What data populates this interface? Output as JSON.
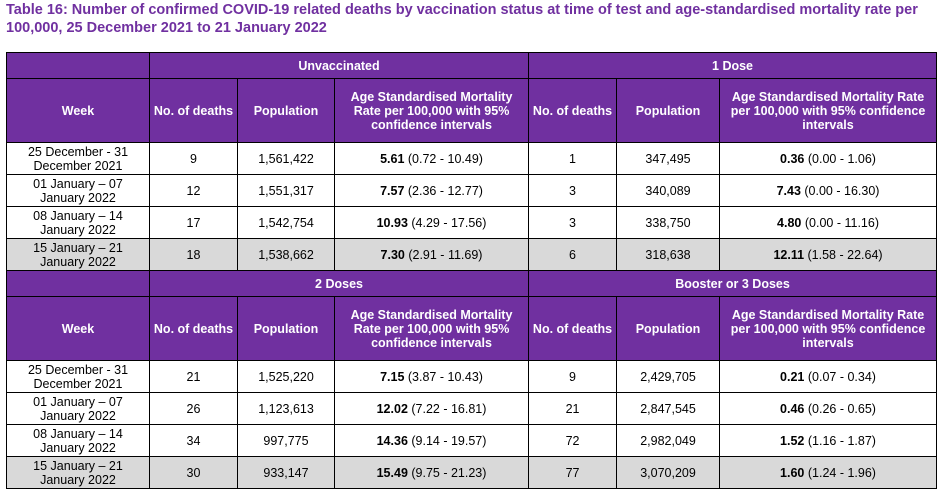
{
  "title": "Table 16: Number of confirmed COVID-19 related deaths by vaccination status at time of test and age-standardised mortality rate per 100,000, 25 December 2021 to 21 January 2022",
  "headers": {
    "week": "Week",
    "deaths": "No. of deaths",
    "population": "Population",
    "rate_left": "Age Standardised Mortality Rate per 100,000 with 95% confidence intervals",
    "rate_right": "Age Standardised Mortality Rate per 100,000 with 95% confidence intervals"
  },
  "sections": [
    {
      "groups": [
        "Unvaccinated",
        "1 Dose"
      ],
      "rows": [
        {
          "week": "25 December - 31 December 2021",
          "d1": "9",
          "p1": "1,561,422",
          "r1": "5.61",
          "ci1": " (0.72 - 10.49)",
          "d2": "1",
          "p2": "347,495",
          "r2": "0.36",
          "ci2": " (0.00 - 1.06)"
        },
        {
          "week": "01 January – 07 January 2022",
          "d1": "12",
          "p1": "1,551,317",
          "r1": "7.57",
          "ci1": " (2.36 - 12.77)",
          "d2": "3",
          "p2": "340,089",
          "r2": "7.43",
          "ci2": " (0.00 - 16.30)"
        },
        {
          "week": "08 January – 14 January 2022",
          "d1": "17",
          "p1": "1,542,754",
          "r1": "10.93",
          "ci1": " (4.29 - 17.56)",
          "d2": "3",
          "p2": "338,750",
          "r2": "4.80",
          "ci2": " (0.00 - 11.16)"
        },
        {
          "week": "15 January – 21 January 2022",
          "d1": "18",
          "p1": "1,538,662",
          "r1": "7.30",
          "ci1": " (2.91 - 11.69)",
          "d2": "6",
          "p2": "318,638",
          "r2": "12.11",
          "ci2": " (1.58 - 22.64)"
        }
      ]
    },
    {
      "groups": [
        "2 Doses",
        "Booster or 3 Doses"
      ],
      "rows": [
        {
          "week": "25 December - 31 December 2021",
          "d1": "21",
          "p1": "1,525,220",
          "r1": "7.15",
          "ci1": " (3.87 - 10.43)",
          "d2": "9",
          "p2": "2,429,705",
          "r2": "0.21",
          "ci2": " (0.07 - 0.34)"
        },
        {
          "week": "01 January – 07 January 2022",
          "d1": "26",
          "p1": "1,123,613",
          "r1": "12.02",
          "ci1": " (7.22 - 16.81)",
          "d2": "21",
          "p2": "2,847,545",
          "r2": "0.46",
          "ci2": " (0.26 - 0.65)"
        },
        {
          "week": "08 January – 14 January 2022",
          "d1": "34",
          "p1": "997,775",
          "r1": "14.36",
          "ci1": " (9.14 - 19.57)",
          "d2": "72",
          "p2": "2,982,049",
          "r2": "1.52",
          "ci2": " (1.16 - 1.87)"
        },
        {
          "week": "15 January – 21 January 2022",
          "d1": "30",
          "p1": "933,147",
          "r1": "15.49",
          "ci1": " (9.75 - 21.23)",
          "d2": "77",
          "p2": "3,070,209",
          "r2": "1.60",
          "ci2": " (1.24 - 1.96)"
        }
      ]
    }
  ]
}
